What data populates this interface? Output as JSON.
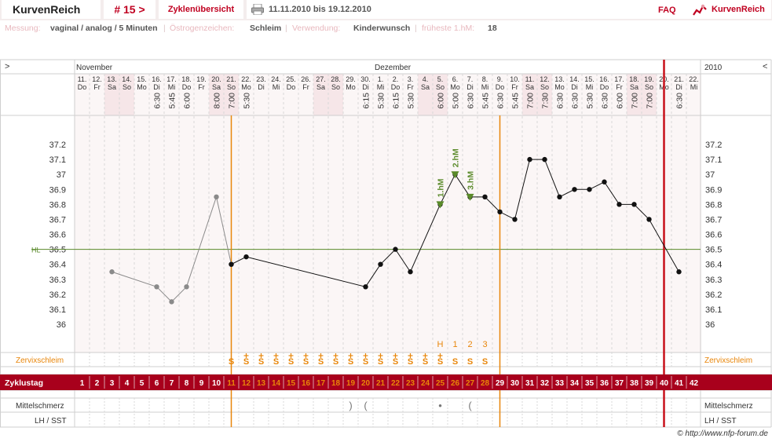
{
  "header": {
    "brand": "KurvenReich",
    "cycle_number": "# 15 >",
    "overview_link": "Zyklenübersicht",
    "date_range": "11.11.2010 bis 19.12.2010",
    "faq": "FAQ",
    "logo_text": "KurvenReich"
  },
  "info": {
    "messung_label": "Messung:",
    "messung_value": "vaginal / analog / 5 Minuten",
    "oestrogen_label": "Östrogenzeichen:",
    "oestrogen_value": "Schleim",
    "verwendung_label": "Verwendung:",
    "verwendung_value": "Kinderwunsch",
    "hm_label": "früheste 1.hM:",
    "hm_value": "18",
    "separator": "|"
  },
  "colors": {
    "accent": "#a8001c",
    "orange": "#e8860a",
    "green": "#5a8a2a",
    "grid": "#d8d8d8",
    "weekend": "#f6e6e8",
    "chart_bg": "#fbf6f6"
  },
  "chart_data": {
    "type": "line",
    "year_label": "2010",
    "month_labels": [
      {
        "day": 1,
        "text": "November"
      },
      {
        "day": 21,
        "text": "Dezember"
      }
    ],
    "nav_left": ">",
    "nav_right": "<",
    "days": [
      {
        "date": "11.",
        "wd": "Do",
        "time": ""
      },
      {
        "date": "12.",
        "wd": "Fr",
        "time": ""
      },
      {
        "date": "13.",
        "wd": "Sa",
        "time": ""
      },
      {
        "date": "14.",
        "wd": "So",
        "time": ""
      },
      {
        "date": "15.",
        "wd": "Mo",
        "time": ""
      },
      {
        "date": "16.",
        "wd": "Di",
        "time": "6:30"
      },
      {
        "date": "17.",
        "wd": "Mi",
        "time": "5:45"
      },
      {
        "date": "18.",
        "wd": "Do",
        "time": "6:00"
      },
      {
        "date": "19.",
        "wd": "Fr",
        "time": ""
      },
      {
        "date": "20.",
        "wd": "Sa",
        "time": "8:00"
      },
      {
        "date": "21.",
        "wd": "So",
        "time": "7:00"
      },
      {
        "date": "22.",
        "wd": "Mo",
        "time": "5:30"
      },
      {
        "date": "23.",
        "wd": "Di",
        "time": ""
      },
      {
        "date": "24.",
        "wd": "Mi",
        "time": ""
      },
      {
        "date": "25.",
        "wd": "Do",
        "time": ""
      },
      {
        "date": "26.",
        "wd": "Fr",
        "time": ""
      },
      {
        "date": "27.",
        "wd": "Sa",
        "time": ""
      },
      {
        "date": "28.",
        "wd": "So",
        "time": ""
      },
      {
        "date": "29.",
        "wd": "Mo",
        "time": ""
      },
      {
        "date": "30.",
        "wd": "Di",
        "time": "6:15"
      },
      {
        "date": "1.",
        "wd": "Mi",
        "time": "5:30"
      },
      {
        "date": "2.",
        "wd": "Do",
        "time": "6:15"
      },
      {
        "date": "3.",
        "wd": "Fr",
        "time": "5:30"
      },
      {
        "date": "4.",
        "wd": "Sa",
        "time": ""
      },
      {
        "date": "5.",
        "wd": "So",
        "time": "6:00"
      },
      {
        "date": "6.",
        "wd": "Mo",
        "time": "5:00"
      },
      {
        "date": "7.",
        "wd": "Di",
        "time": "6:30"
      },
      {
        "date": "8.",
        "wd": "Mi",
        "time": "5:45"
      },
      {
        "date": "9.",
        "wd": "Do",
        "time": "6:30"
      },
      {
        "date": "10.",
        "wd": "Fr",
        "time": "5:45"
      },
      {
        "date": "11.",
        "wd": "Sa",
        "time": "7:00"
      },
      {
        "date": "12.",
        "wd": "So",
        "time": "7:30"
      },
      {
        "date": "13.",
        "wd": "Mo",
        "time": "6:30"
      },
      {
        "date": "14.",
        "wd": "Di",
        "time": "6:30"
      },
      {
        "date": "15.",
        "wd": "Mi",
        "time": "5:30"
      },
      {
        "date": "16.",
        "wd": "Do",
        "time": "6:30"
      },
      {
        "date": "17.",
        "wd": "Fr",
        "time": "6:00"
      },
      {
        "date": "18.",
        "wd": "Sa",
        "time": "7:00"
      },
      {
        "date": "19.",
        "wd": "So",
        "time": "7:00"
      },
      {
        "date": "20.",
        "wd": "Mo",
        "time": ""
      },
      {
        "date": "21.",
        "wd": "Di",
        "time": "6:30"
      },
      {
        "date": "22.",
        "wd": "Mi",
        "time": ""
      }
    ],
    "y_ticks": [
      "37.2",
      "37.1",
      "37",
      "36.9",
      "36.8",
      "36.7",
      "36.6",
      "36.5",
      "36.4",
      "36.3",
      "36.2",
      "36.1",
      "36"
    ],
    "ylim": [
      36,
      37.2
    ],
    "hl_label": "HL",
    "hl_value": 36.5,
    "prev_cycle_series": [
      {
        "day": 3,
        "temp": 36.35
      },
      {
        "day": 6,
        "temp": 36.25
      },
      {
        "day": 7,
        "temp": 36.15
      },
      {
        "day": 8,
        "temp": 36.25
      },
      {
        "day": 10,
        "temp": 36.85
      },
      {
        "day": 11,
        "temp": 36.4
      }
    ],
    "temperature_series": [
      {
        "day": 11,
        "temp": 36.4
      },
      {
        "day": 12,
        "temp": 36.45
      },
      {
        "day": 20,
        "temp": 36.25
      },
      {
        "day": 21,
        "temp": 36.4
      },
      {
        "day": 22,
        "temp": 36.5
      },
      {
        "day": 23,
        "temp": 36.35
      },
      {
        "day": 25,
        "temp": 36.8
      },
      {
        "day": 26,
        "temp": 37.0
      },
      {
        "day": 27,
        "temp": 36.85
      },
      {
        "day": 28,
        "temp": 36.85
      },
      {
        "day": 29,
        "temp": 36.75
      },
      {
        "day": 30,
        "temp": 36.7
      },
      {
        "day": 31,
        "temp": 37.1
      },
      {
        "day": 32,
        "temp": 37.1
      },
      {
        "day": 33,
        "temp": 36.85
      },
      {
        "day": 34,
        "temp": 36.9
      },
      {
        "day": 35,
        "temp": 36.9
      },
      {
        "day": 36,
        "temp": 36.95
      },
      {
        "day": 37,
        "temp": 36.8
      },
      {
        "day": 38,
        "temp": 36.8
      },
      {
        "day": 39,
        "temp": 36.7
      },
      {
        "day": 41,
        "temp": 36.35
      }
    ],
    "hm_markers": [
      {
        "day": 25,
        "temp": 36.8,
        "label": "1.hM"
      },
      {
        "day": 26,
        "temp": 37.0,
        "label": "2.hM"
      },
      {
        "day": 27,
        "temp": 36.85,
        "label": "3.hM"
      }
    ],
    "orange_lines_days": [
      10.5,
      28.5
    ],
    "red_line_day": 39.5,
    "peak_labels": [
      {
        "day": 25,
        "text": "H"
      },
      {
        "day": 26,
        "text": "1"
      },
      {
        "day": 27,
        "text": "2"
      },
      {
        "day": 28,
        "text": "3"
      }
    ],
    "zervix_label": "Zervixschleim",
    "zervix_symbols": [
      "",
      "",
      "",
      "",
      "",
      "",
      "",
      "",
      "",
      "",
      "S",
      "S+",
      "S+",
      "S+",
      "S+",
      "S+",
      "S+",
      "S+",
      "S+",
      "S+",
      "S+",
      "S+",
      "S+",
      "S+",
      "S+",
      "S",
      "S",
      "S",
      "",
      "",
      "",
      "",
      "",
      "",
      "",
      "",
      "",
      "",
      "",
      "",
      "",
      ""
    ],
    "cycleday_label": "Zyklustag",
    "cycle_days": [
      "1",
      "2",
      "3",
      "4",
      "5",
      "6",
      "7",
      "8",
      "9",
      "10",
      "11",
      "12",
      "13",
      "14",
      "15",
      "16",
      "17",
      "18",
      "19",
      "20",
      "21",
      "22",
      "23",
      "24",
      "25",
      "26",
      "27",
      "28",
      "29",
      "30",
      "31",
      "32",
      "33",
      "34",
      "35",
      "36",
      "37",
      "38",
      "39",
      "40",
      "41",
      "42"
    ],
    "mittelschmerz_label": "Mittelschmerz",
    "mittelschmerz_marks": [
      {
        "day": 19,
        "text": ")"
      },
      {
        "day": 20,
        "text": "("
      },
      {
        "day": 25,
        "text": "•"
      },
      {
        "day": 27,
        "text": "("
      }
    ],
    "lh_label": "LH / SST",
    "copyright": "© http://www.nfp-forum.de"
  }
}
